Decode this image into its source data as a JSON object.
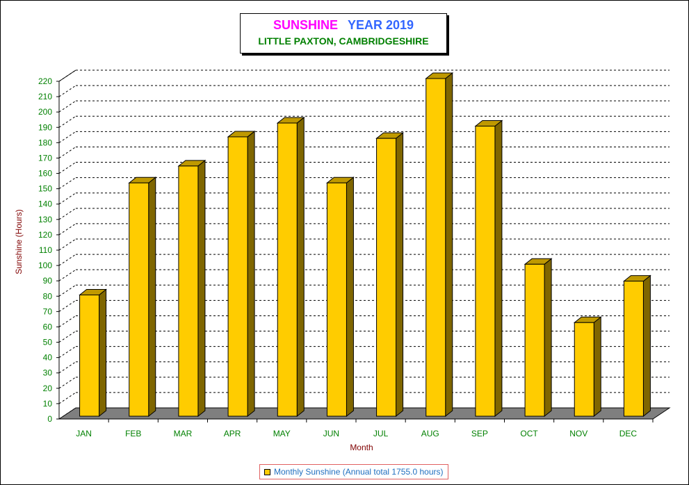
{
  "header": {
    "title_part1": "SUNSHINE",
    "title_part2": "YEAR 2019",
    "subtitle": "LITTLE PAXTON, CAMBRIDGESHIRE"
  },
  "legend": {
    "label": "Monthly Sunshine (Annual total 1755.0 hours)"
  },
  "colors": {
    "bar_front": "#ffcc00",
    "bar_side": "#7f6600",
    "floor": "#7f7f7f",
    "axis_text": "#008000",
    "axis_title": "#800000",
    "title_magenta": "#ff00ff",
    "title_blue": "#3366ff"
  },
  "chart_data": {
    "type": "bar",
    "categories": [
      "JAN",
      "FEB",
      "MAR",
      "APR",
      "MAY",
      "JUN",
      "JUL",
      "AUG",
      "SEP",
      "OCT",
      "NOV",
      "DEC"
    ],
    "series": [
      {
        "name": "Monthly Sunshine (Annual total 1755.0 hours)",
        "values": [
          79,
          152,
          163,
          182,
          191,
          152,
          181,
          220,
          189,
          99,
          61,
          88
        ]
      }
    ],
    "xlabel": "Month",
    "ylabel": "Sunshine (Hours)",
    "ylim": [
      0,
      220
    ],
    "ytick_step": 10,
    "grid": true,
    "legend_position": "bottom-center",
    "three_d": true
  }
}
